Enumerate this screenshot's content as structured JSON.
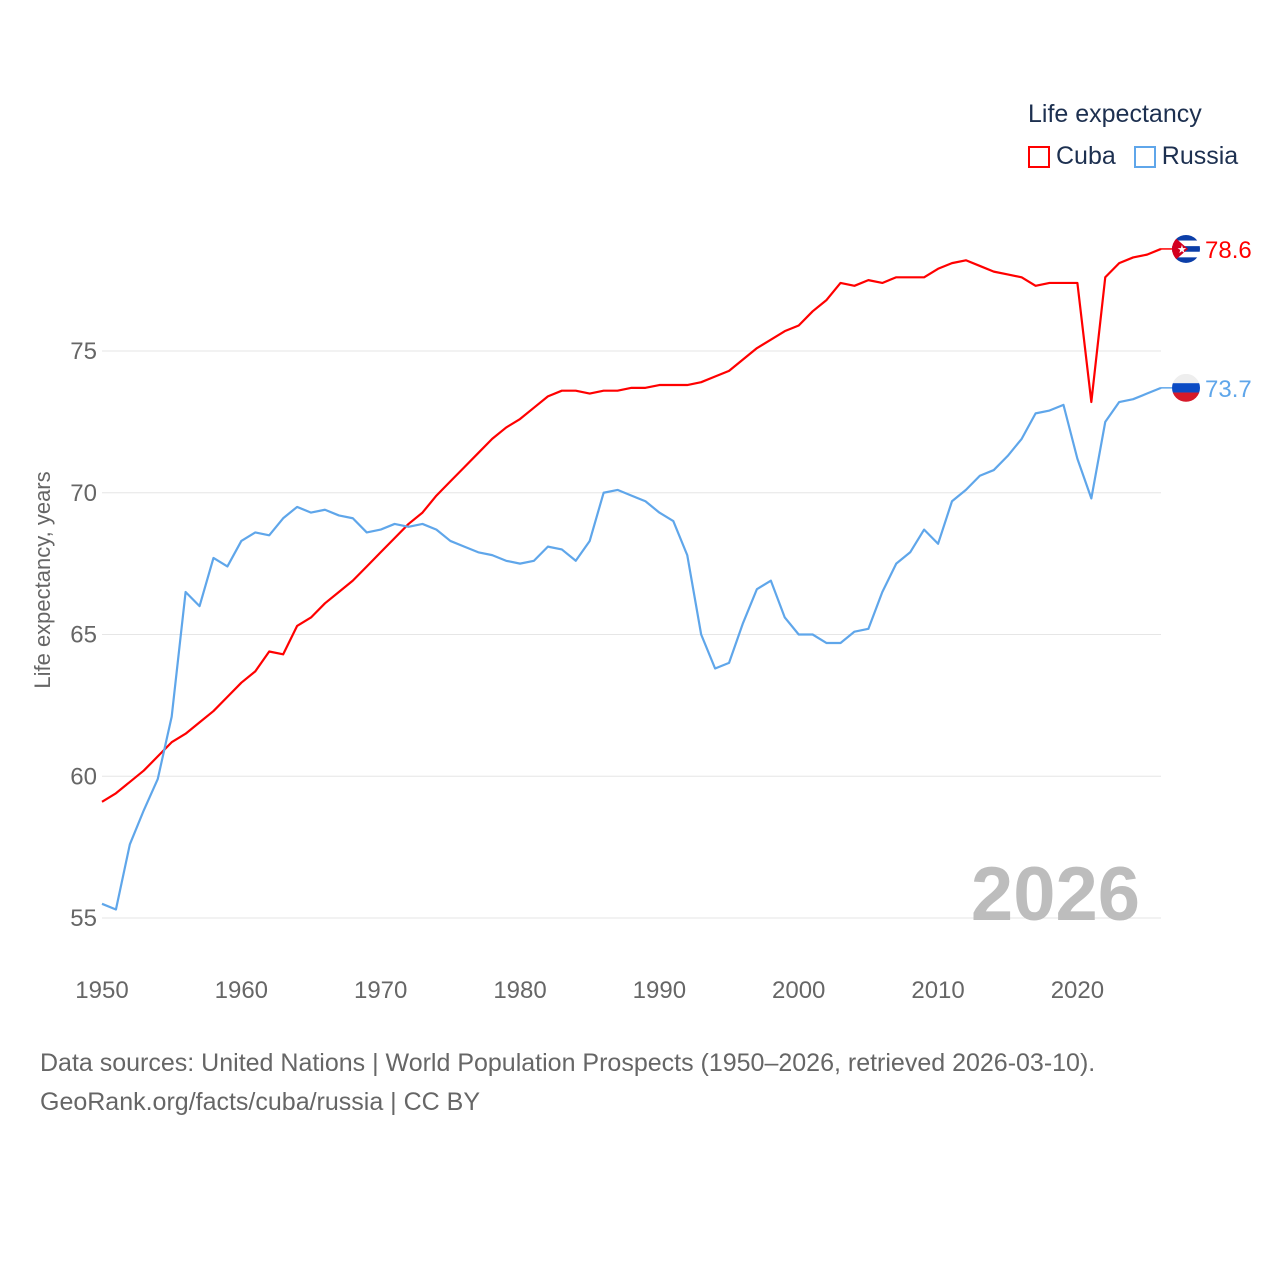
{
  "chart_data": {
    "type": "line",
    "title": "Life expectancy",
    "xlabel": "",
    "ylabel": "Life expectancy, years",
    "xlim": [
      1950,
      2026
    ],
    "ylim": [
      53.5,
      80
    ],
    "yticks": [
      55,
      60,
      65,
      70,
      75
    ],
    "xticks": [
      1950,
      1960,
      1970,
      1980,
      1990,
      2000,
      2010,
      2020
    ],
    "grid": true,
    "legend_position": "top-right",
    "year_label": "2026",
    "x_start": 1950,
    "series": [
      {
        "name": "Cuba",
        "color": "#ff0000",
        "end_label": "78.6",
        "values": [
          59.1,
          59.4,
          59.8,
          60.2,
          60.7,
          61.2,
          61.5,
          61.9,
          62.3,
          62.8,
          63.3,
          63.7,
          64.4,
          64.3,
          65.3,
          65.6,
          66.1,
          66.5,
          66.9,
          67.4,
          67.9,
          68.4,
          68.9,
          69.3,
          69.9,
          70.4,
          70.9,
          71.4,
          71.9,
          72.3,
          72.6,
          73.0,
          73.4,
          73.6,
          73.6,
          73.5,
          73.6,
          73.6,
          73.7,
          73.7,
          73.8,
          73.8,
          73.8,
          73.9,
          74.1,
          74.3,
          74.7,
          75.1,
          75.4,
          75.7,
          75.9,
          76.4,
          76.8,
          77.4,
          77.3,
          77.5,
          77.4,
          77.6,
          77.6,
          77.6,
          77.9,
          78.1,
          78.2,
          78.0,
          77.8,
          77.7,
          77.6,
          77.3,
          77.4,
          77.4,
          77.4,
          73.2,
          77.6,
          78.1,
          78.3,
          78.4,
          78.6
        ]
      },
      {
        "name": "Russia",
        "color": "#5fa6ea",
        "end_label": "73.7",
        "values": [
          55.5,
          55.3,
          57.6,
          58.8,
          59.9,
          62.1,
          66.5,
          66.0,
          67.7,
          67.4,
          68.3,
          68.6,
          68.5,
          69.1,
          69.5,
          69.3,
          69.4,
          69.2,
          69.1,
          68.6,
          68.7,
          68.9,
          68.8,
          68.9,
          68.7,
          68.3,
          68.1,
          67.9,
          67.8,
          67.6,
          67.5,
          67.6,
          68.1,
          68.0,
          67.6,
          68.3,
          70.0,
          70.1,
          69.9,
          69.7,
          69.3,
          69.0,
          67.8,
          65.0,
          63.8,
          64.0,
          65.4,
          66.6,
          66.9,
          65.6,
          65.0,
          65.0,
          64.7,
          64.7,
          65.1,
          65.2,
          66.5,
          67.5,
          67.9,
          68.7,
          68.2,
          69.7,
          70.1,
          70.6,
          70.8,
          71.3,
          71.9,
          72.8,
          72.9,
          73.1,
          71.2,
          69.8,
          72.5,
          73.2,
          73.3,
          73.5,
          73.7
        ]
      }
    ]
  },
  "footer": {
    "line1": "Data sources: United Nations | World Population Prospects (1950–2026, retrieved 2026-03-10).",
    "line2": "GeoRank.org/facts/cuba/russia | CC BY"
  }
}
